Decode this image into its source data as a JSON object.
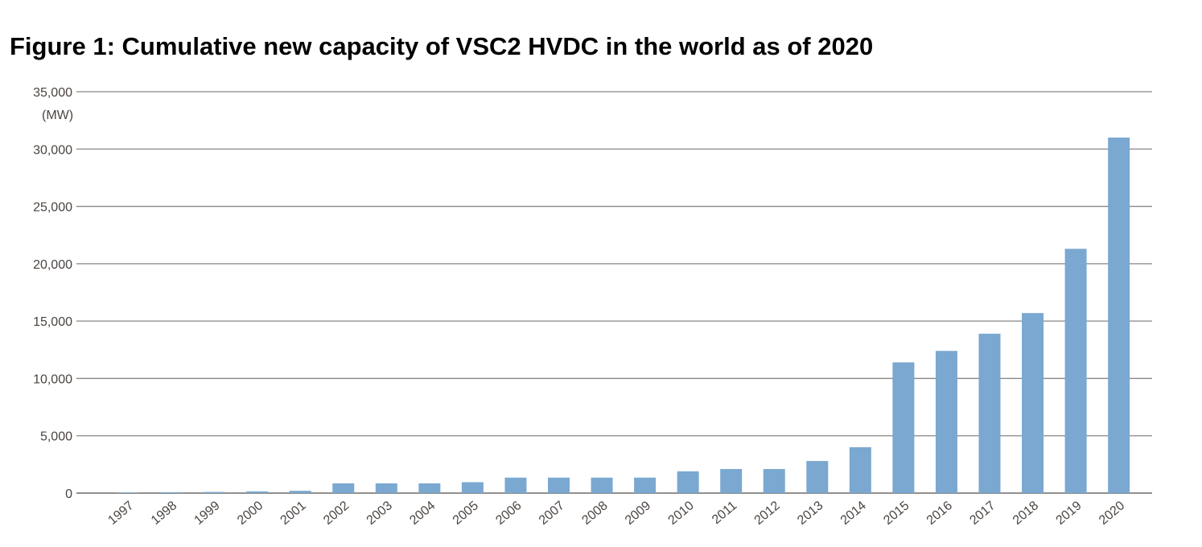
{
  "chart_data": {
    "type": "bar",
    "title": "Figure 1: Cumulative new capacity of VSC2 HVDC in the world as of 2020",
    "ylabel": "(MW)",
    "xlabel": "",
    "ylim": [
      0,
      35000
    ],
    "yticks": [
      0,
      5000,
      10000,
      15000,
      20000,
      25000,
      30000,
      35000
    ],
    "ytick_labels": [
      "0",
      "5,000",
      "10,000",
      "15,000",
      "20,000",
      "25,000",
      "30,000",
      "35,000"
    ],
    "grid": true,
    "bar_color": "#7aa8d0",
    "categories": [
      "1997",
      "1998",
      "1999",
      "2000",
      "2001",
      "2002",
      "2003",
      "2004",
      "2005",
      "2006",
      "2007",
      "2008",
      "2009",
      "2010",
      "2011",
      "2012",
      "2013",
      "2014",
      "2015",
      "2016",
      "2017",
      "2018",
      "2019",
      "2020"
    ],
    "values": [
      60,
      80,
      100,
      150,
      200,
      850,
      850,
      850,
      950,
      1350,
      1350,
      1350,
      1350,
      1900,
      2100,
      2100,
      2800,
      4000,
      11400,
      12400,
      13900,
      15700,
      21300,
      31000
    ]
  }
}
